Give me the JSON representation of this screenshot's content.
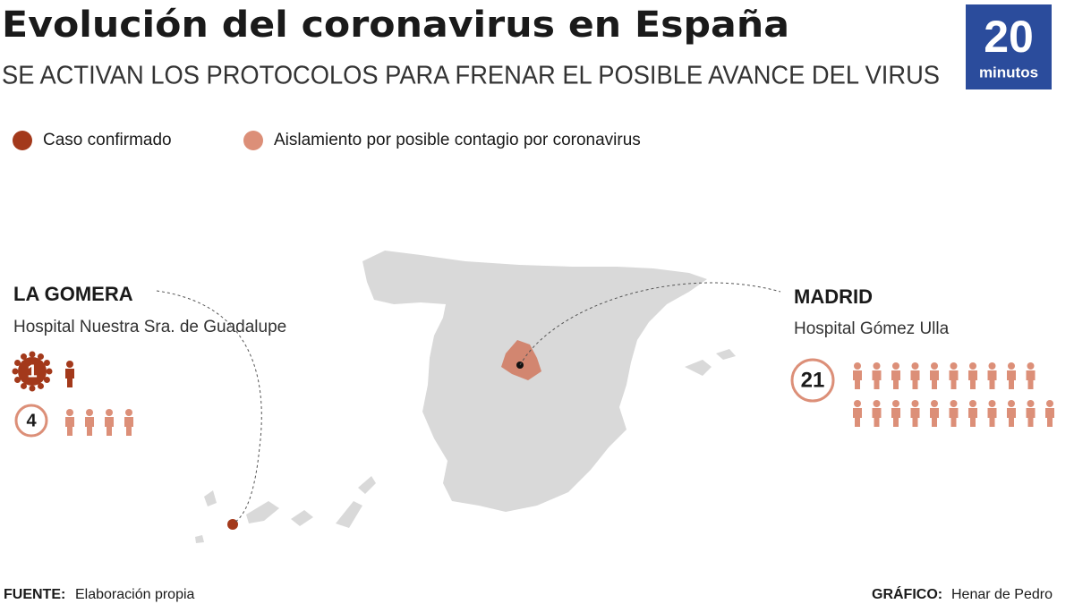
{
  "header": {
    "title": "Evolución del coronavirus en España",
    "subtitle": "SE ACTIVAN LOS PROTOCOLOS PARA FRENAR EL POSIBLE AVANCE DEL VIRUS",
    "logo": {
      "number": "20",
      "word": "minutos"
    }
  },
  "legend": [
    {
      "label": "Caso confirmado",
      "color": "#a3391b"
    },
    {
      "label": "Aislamiento por posible contagio por coronavirus",
      "color": "#dc8f78"
    }
  ],
  "locations": [
    {
      "name": "LA GOMERA",
      "hospital": "Hospital Nuestra Sra. de Guadalupe",
      "confirmed": 1,
      "isolated": 4
    },
    {
      "name": "MADRID",
      "hospital": "Hospital Gómez Ulla",
      "isolated": 21
    }
  ],
  "footer": {
    "source_label": "FUENTE:",
    "source": "Elaboración propia",
    "credit_label": "GRÁFICO:",
    "credit": "Henar de Pedro"
  }
}
